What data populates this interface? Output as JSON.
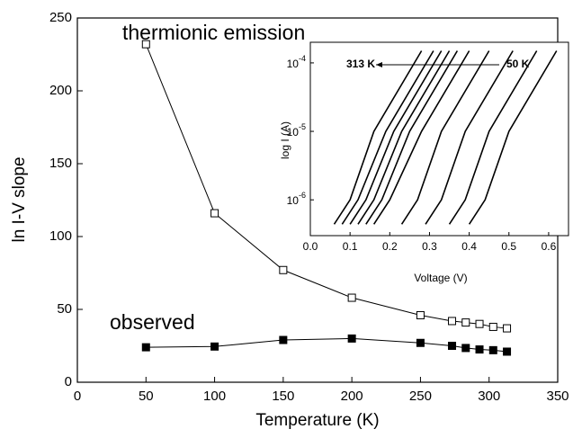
{
  "chart_data": [
    {
      "type": "line",
      "x_label": "Temperature (K)",
      "y_label": "ln I-V slope",
      "annotations": [
        "thermionic emission",
        "observed"
      ],
      "x": [
        50,
        100,
        150,
        200,
        250,
        273,
        283,
        293,
        303,
        313
      ],
      "series": [
        {
          "name": "thermionic emission",
          "color": "#000000",
          "marker": "open",
          "values": [
            232,
            116,
            77,
            58,
            46,
            42,
            41,
            40,
            38,
            37
          ]
        },
        {
          "name": "observed",
          "color": "#000000",
          "marker": "filled",
          "values": [
            24,
            24.5,
            29,
            30,
            27,
            25,
            23.5,
            22.5,
            22,
            21
          ]
        }
      ],
      "xlim": [
        0,
        350
      ],
      "xticks": [
        0,
        50,
        100,
        150,
        200,
        250,
        300,
        350
      ],
      "ylim": [
        0,
        250
      ],
      "yticks": [
        0,
        50,
        100,
        150,
        200,
        250
      ]
    },
    {
      "type": "line",
      "x_label": "Voltage (V)",
      "y_label": "log I (A)",
      "annotations": [
        "313 K",
        "50 K"
      ],
      "log_y": true,
      "values": [
        4.4e-07,
        1e-06,
        1e-05,
        0.00015
      ],
      "series": [
        {
          "x": [
            0.06,
            0.1,
            0.16,
            0.28
          ]
        },
        {
          "x": [
            0.08,
            0.12,
            0.19,
            0.31
          ]
        },
        {
          "x": [
            0.1,
            0.14,
            0.21,
            0.33
          ]
        },
        {
          "x": [
            0.12,
            0.16,
            0.23,
            0.35
          ]
        },
        {
          "x": [
            0.14,
            0.18,
            0.25,
            0.37
          ]
        },
        {
          "x": [
            0.16,
            0.2,
            0.28,
            0.4
          ]
        },
        {
          "x": [
            0.23,
            0.27,
            0.33,
            0.45
          ]
        },
        {
          "x": [
            0.29,
            0.33,
            0.39,
            0.51
          ]
        },
        {
          "x": [
            0.35,
            0.39,
            0.45,
            0.57
          ]
        },
        {
          "x": [
            0.4,
            0.44,
            0.5,
            0.62
          ]
        }
      ],
      "color": "#000000",
      "xlim": [
        0,
        0.65
      ],
      "xticks": [
        {
          "value": 0,
          "label": "0.0"
        },
        0.1,
        0.2,
        0.3,
        0.4,
        0.5,
        0.6
      ],
      "ylim": [
        3e-07,
        0.0002
      ],
      "yticks": [
        {
          "value": 1e-06,
          "label": "10",
          "sup": "-6"
        },
        {
          "value": 1e-05,
          "label": "10",
          "sup": "-5"
        },
        {
          "value": 0.0001,
          "label": "10",
          "sup": "-4"
        }
      ]
    }
  ]
}
